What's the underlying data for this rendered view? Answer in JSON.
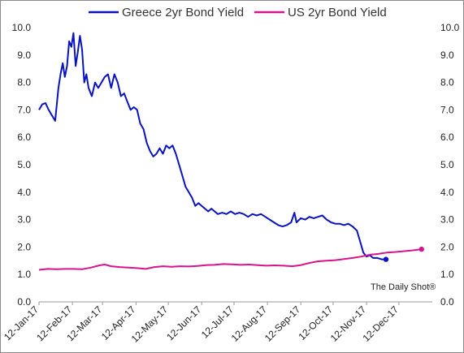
{
  "chart_data": {
    "type": "line",
    "title": "",
    "xlabel": "",
    "ylabel": "",
    "ylim": [
      0,
      10
    ],
    "yticks": [
      "0.0",
      "1.0",
      "2.0",
      "3.0",
      "4.0",
      "5.0",
      "6.0",
      "7.0",
      "8.0",
      "9.0",
      "10.0"
    ],
    "xlim": [
      "2017-01-12",
      "2018-01-12"
    ],
    "xticks": [
      {
        "date": "2017-01-12",
        "label": "12-Jan-17"
      },
      {
        "date": "2017-02-12",
        "label": "12-Feb-17"
      },
      {
        "date": "2017-03-12",
        "label": "12-Mar-17"
      },
      {
        "date": "2017-04-12",
        "label": "12-Apr-17"
      },
      {
        "date": "2017-05-12",
        "label": "12-May-17"
      },
      {
        "date": "2017-06-12",
        "label": "12-Jun-17"
      },
      {
        "date": "2017-07-12",
        "label": "12-Jul-17"
      },
      {
        "date": "2017-08-12",
        "label": "12-Aug-17"
      },
      {
        "date": "2017-09-12",
        "label": "12-Sep-17"
      },
      {
        "date": "2017-10-12",
        "label": "12-Oct-17"
      },
      {
        "date": "2017-11-12",
        "label": "12-Nov-17"
      },
      {
        "date": "2017-12-12",
        "label": "12-Dec-17"
      }
    ],
    "grid": false,
    "legend_position": "top",
    "annotation": "The Daily Shot®",
    "series": [
      {
        "name": "Greece 2yr Bond Yield",
        "color": "#0a14be",
        "end_marker": true,
        "points": [
          [
            "2017-01-12",
            7.0
          ],
          [
            "2017-01-15",
            7.2
          ],
          [
            "2017-01-18",
            7.25
          ],
          [
            "2017-01-21",
            7.0
          ],
          [
            "2017-01-24",
            6.8
          ],
          [
            "2017-01-27",
            6.6
          ],
          [
            "2017-01-30",
            7.8
          ],
          [
            "2017-02-01",
            8.3
          ],
          [
            "2017-02-03",
            8.7
          ],
          [
            "2017-02-05",
            8.2
          ],
          [
            "2017-02-07",
            8.6
          ],
          [
            "2017-02-09",
            9.5
          ],
          [
            "2017-02-11",
            9.3
          ],
          [
            "2017-02-13",
            9.8
          ],
          [
            "2017-02-15",
            8.6
          ],
          [
            "2017-02-17",
            9.1
          ],
          [
            "2017-02-19",
            9.7
          ],
          [
            "2017-02-21",
            9.2
          ],
          [
            "2017-02-23",
            8.0
          ],
          [
            "2017-02-25",
            8.3
          ],
          [
            "2017-02-27",
            7.8
          ],
          [
            "2017-03-02",
            7.5
          ],
          [
            "2017-03-05",
            8.0
          ],
          [
            "2017-03-08",
            7.8
          ],
          [
            "2017-03-11",
            8.0
          ],
          [
            "2017-03-14",
            8.2
          ],
          [
            "2017-03-17",
            8.3
          ],
          [
            "2017-03-20",
            7.8
          ],
          [
            "2017-03-23",
            8.3
          ],
          [
            "2017-03-26",
            8.0
          ],
          [
            "2017-03-29",
            7.5
          ],
          [
            "2017-04-01",
            7.6
          ],
          [
            "2017-04-04",
            7.3
          ],
          [
            "2017-04-07",
            7.0
          ],
          [
            "2017-04-10",
            7.1
          ],
          [
            "2017-04-13",
            7.0
          ],
          [
            "2017-04-16",
            6.5
          ],
          [
            "2017-04-19",
            6.3
          ],
          [
            "2017-04-22",
            5.8
          ],
          [
            "2017-04-25",
            5.5
          ],
          [
            "2017-04-28",
            5.3
          ],
          [
            "2017-05-01",
            5.4
          ],
          [
            "2017-05-04",
            5.6
          ],
          [
            "2017-05-07",
            5.4
          ],
          [
            "2017-05-10",
            5.7
          ],
          [
            "2017-05-13",
            5.6
          ],
          [
            "2017-05-16",
            5.7
          ],
          [
            "2017-05-19",
            5.4
          ],
          [
            "2017-05-22",
            5.0
          ],
          [
            "2017-05-25",
            4.6
          ],
          [
            "2017-05-28",
            4.2
          ],
          [
            "2017-05-31",
            4.0
          ],
          [
            "2017-06-03",
            3.8
          ],
          [
            "2017-06-06",
            3.5
          ],
          [
            "2017-06-09",
            3.6
          ],
          [
            "2017-06-12",
            3.5
          ],
          [
            "2017-06-15",
            3.4
          ],
          [
            "2017-06-18",
            3.3
          ],
          [
            "2017-06-21",
            3.4
          ],
          [
            "2017-06-24",
            3.3
          ],
          [
            "2017-06-27",
            3.2
          ],
          [
            "2017-07-01",
            3.25
          ],
          [
            "2017-07-05",
            3.2
          ],
          [
            "2017-07-09",
            3.3
          ],
          [
            "2017-07-13",
            3.2
          ],
          [
            "2017-07-17",
            3.25
          ],
          [
            "2017-07-21",
            3.2
          ],
          [
            "2017-07-25",
            3.1
          ],
          [
            "2017-07-29",
            3.2
          ],
          [
            "2017-08-02",
            3.15
          ],
          [
            "2017-08-06",
            3.2
          ],
          [
            "2017-08-10",
            3.1
          ],
          [
            "2017-08-14",
            3.0
          ],
          [
            "2017-08-18",
            2.9
          ],
          [
            "2017-08-22",
            2.8
          ],
          [
            "2017-08-26",
            2.75
          ],
          [
            "2017-08-30",
            2.8
          ],
          [
            "2017-09-03",
            2.9
          ],
          [
            "2017-09-06",
            3.25
          ],
          [
            "2017-09-08",
            2.9
          ],
          [
            "2017-09-12",
            3.05
          ],
          [
            "2017-09-16",
            3.0
          ],
          [
            "2017-09-20",
            3.1
          ],
          [
            "2017-09-24",
            3.05
          ],
          [
            "2017-09-28",
            3.1
          ],
          [
            "2017-10-02",
            3.15
          ],
          [
            "2017-10-06",
            3.0
          ],
          [
            "2017-10-10",
            2.9
          ],
          [
            "2017-10-14",
            2.85
          ],
          [
            "2017-10-18",
            2.85
          ],
          [
            "2017-10-22",
            2.8
          ],
          [
            "2017-10-26",
            2.85
          ],
          [
            "2017-10-30",
            2.75
          ],
          [
            "2017-11-03",
            2.6
          ],
          [
            "2017-11-06",
            2.2
          ],
          [
            "2017-11-09",
            1.8
          ],
          [
            "2017-11-12",
            1.65
          ],
          [
            "2017-11-15",
            1.7
          ],
          [
            "2017-11-18",
            1.6
          ],
          [
            "2017-11-22",
            1.6
          ],
          [
            "2017-11-26",
            1.55
          ],
          [
            "2017-11-30",
            1.55
          ]
        ]
      },
      {
        "name": "US 2yr Bond Yield",
        "color": "#d6148c",
        "end_marker": true,
        "points": [
          [
            "2017-01-12",
            1.17
          ],
          [
            "2017-01-20",
            1.2
          ],
          [
            "2017-01-28",
            1.19
          ],
          [
            "2017-02-05",
            1.2
          ],
          [
            "2017-02-13",
            1.2
          ],
          [
            "2017-02-21",
            1.19
          ],
          [
            "2017-03-01",
            1.25
          ],
          [
            "2017-03-09",
            1.33
          ],
          [
            "2017-03-14",
            1.36
          ],
          [
            "2017-03-20",
            1.3
          ],
          [
            "2017-03-28",
            1.27
          ],
          [
            "2017-04-05",
            1.25
          ],
          [
            "2017-04-13",
            1.23
          ],
          [
            "2017-04-21",
            1.2
          ],
          [
            "2017-04-29",
            1.27
          ],
          [
            "2017-05-07",
            1.3
          ],
          [
            "2017-05-15",
            1.28
          ],
          [
            "2017-05-23",
            1.3
          ],
          [
            "2017-05-31",
            1.29
          ],
          [
            "2017-06-08",
            1.31
          ],
          [
            "2017-06-16",
            1.34
          ],
          [
            "2017-06-24",
            1.35
          ],
          [
            "2017-07-02",
            1.38
          ],
          [
            "2017-07-10",
            1.37
          ],
          [
            "2017-07-18",
            1.35
          ],
          [
            "2017-07-26",
            1.36
          ],
          [
            "2017-08-03",
            1.34
          ],
          [
            "2017-08-11",
            1.32
          ],
          [
            "2017-08-19",
            1.33
          ],
          [
            "2017-08-27",
            1.32
          ],
          [
            "2017-09-04",
            1.3
          ],
          [
            "2017-09-12",
            1.34
          ],
          [
            "2017-09-20",
            1.42
          ],
          [
            "2017-09-28",
            1.48
          ],
          [
            "2017-10-06",
            1.5
          ],
          [
            "2017-10-14",
            1.52
          ],
          [
            "2017-10-22",
            1.56
          ],
          [
            "2017-10-30",
            1.6
          ],
          [
            "2017-11-07",
            1.65
          ],
          [
            "2017-11-15",
            1.72
          ],
          [
            "2017-11-23",
            1.75
          ],
          [
            "2017-12-01",
            1.8
          ],
          [
            "2017-12-09",
            1.82
          ],
          [
            "2017-12-17",
            1.85
          ],
          [
            "2017-12-25",
            1.88
          ],
          [
            "2018-01-02",
            1.92
          ]
        ]
      }
    ]
  }
}
